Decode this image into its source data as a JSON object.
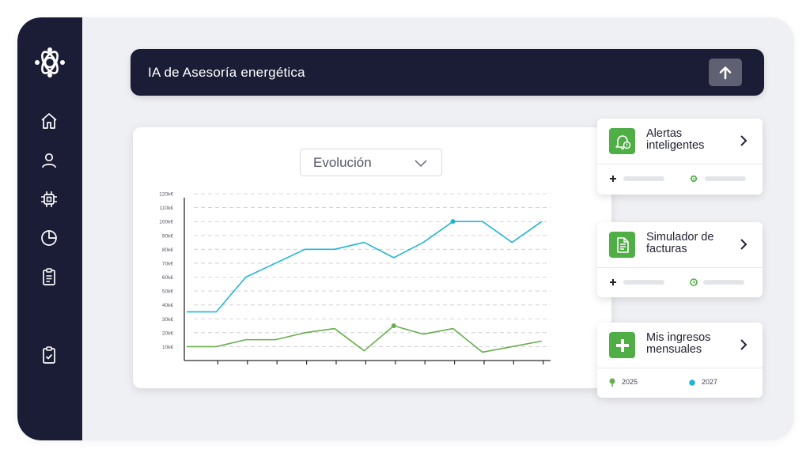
{
  "assistant": {
    "title": "IA de Asesoría energética"
  },
  "chart": {
    "selector_value": "Evolución",
    "colors": {
      "series_2027": "#22b5d3",
      "series_2025": "#68ad4e",
      "grid": "#c9cacf",
      "axis": "#2b2b2b"
    }
  },
  "chart_data": {
    "type": "line",
    "y_tick_labels": [
      "10k€",
      "20k€",
      "30k€",
      "40k€",
      "50k€",
      "60k€",
      "70k€",
      "80k€",
      "90k€",
      "100k€",
      "110k€",
      "120k€"
    ],
    "ylim": [
      0,
      120
    ],
    "x_count": 13,
    "grid": true,
    "series": [
      {
        "name": "2027",
        "values": [
          35,
          35,
          60,
          70,
          80,
          80,
          85,
          74,
          85,
          100,
          100,
          85,
          100
        ],
        "highlight_index": 9
      },
      {
        "name": "2025",
        "values": [
          10,
          10,
          15,
          15,
          20,
          23,
          7,
          25,
          19,
          23,
          6,
          10,
          14
        ],
        "highlight_index": 7
      }
    ]
  },
  "cards": [
    {
      "title": "Alertas inteligentes",
      "icon": "bell-alert-icon"
    },
    {
      "title": "Simulador de facturas",
      "icon": "invoice-document-icon"
    },
    {
      "title": "Mis ingresos mensuales",
      "icon": "plus-icon",
      "legend": [
        {
          "label": "2025",
          "color": "#68ad4e"
        },
        {
          "label": "2027",
          "color": "#22b5d3"
        }
      ]
    }
  ],
  "sidebar": {
    "items": [
      {
        "icon": "home-icon"
      },
      {
        "icon": "user-icon"
      },
      {
        "icon": "chip-icon"
      },
      {
        "icon": "pie-chart-icon"
      },
      {
        "icon": "clipboard-list-icon"
      },
      {
        "icon": "clipboard-check-icon"
      }
    ]
  }
}
